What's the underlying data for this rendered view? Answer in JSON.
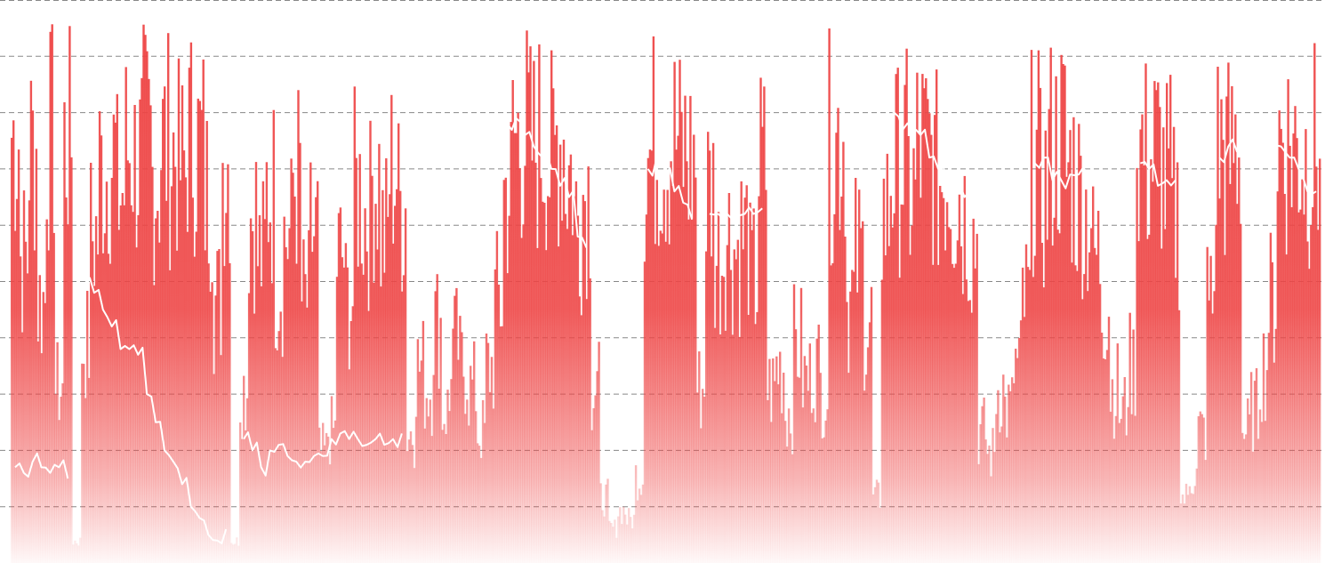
{
  "chart_data": {
    "type": "bar",
    "title": "",
    "xlabel": "",
    "ylabel": "",
    "ylim": [
      0,
      100
    ],
    "grid": true,
    "grid_step": 10,
    "grid_style": "dashed",
    "legend": "none",
    "colors": {
      "bars": "#ee4444",
      "line": "#ffffff",
      "grid": "#888888"
    },
    "series": [
      {
        "type": "bar",
        "values": [
          98,
          70,
          95,
          60,
          97,
          40,
          96,
          5,
          50,
          75,
          90,
          93,
          85,
          95,
          92,
          97,
          88,
          96,
          94,
          90,
          97,
          95,
          85,
          60,
          92,
          5,
          40,
          80,
          70,
          85,
          65,
          75,
          88,
          60,
          75,
          25,
          30,
          70,
          60,
          85,
          80,
          88,
          75,
          90,
          82,
          30,
          45,
          40,
          55,
          35,
          50,
          45,
          40,
          30,
          45,
          60,
          85,
          97,
          98,
          95,
          97,
          92,
          98,
          90,
          80,
          85,
          40,
          15,
          8,
          12,
          10,
          20,
          93,
          96,
          95,
          97,
          94,
          92,
          40,
          85,
          70,
          75,
          72,
          75,
          65,
          90,
          40,
          45,
          35,
          50,
          42,
          45,
          40,
          95,
          98,
          60,
          70,
          55,
          15,
          80,
          90,
          92,
          85,
          95,
          93,
          88,
          90,
          85,
          80,
          75,
          30,
          25,
          40,
          35,
          45,
          60,
          92,
          85,
          95,
          97,
          90,
          85,
          80,
          70,
          60,
          40,
          35,
          45,
          95,
          92,
          94,
          88,
          80,
          15,
          20,
          30,
          60,
          95,
          92,
          96,
          30,
          35,
          45,
          60,
          97,
          96,
          95,
          93,
          94
        ]
      },
      {
        "type": "line",
        "values": [
          17,
          16,
          18,
          17,
          16,
          17,
          15,
          null,
          50,
          48,
          45,
          42,
          38,
          38,
          37,
          30,
          25,
          20,
          18,
          14,
          10,
          8,
          5,
          4,
          6,
          null,
          22,
          20,
          17,
          20,
          21,
          19,
          18,
          18,
          19,
          19,
          22,
          23,
          22,
          22,
          21,
          22,
          21,
          22,
          23,
          null,
          null,
          null,
          null,
          null,
          null,
          null,
          null,
          null,
          null,
          null,
          78,
          79,
          76,
          74,
          72,
          70,
          67,
          65,
          58,
          56,
          null,
          null,
          null,
          null,
          null,
          null,
          70,
          72,
          69,
          66,
          64,
          61,
          null,
          62,
          62,
          62,
          62,
          62,
          62,
          63,
          null,
          null,
          null,
          null,
          null,
          null,
          null,
          85,
          80,
          null,
          null,
          null,
          null,
          82,
          80,
          77,
          77,
          76,
          72,
          70,
          67,
          66,
          65,
          65,
          null,
          null,
          null,
          null,
          null,
          null,
          71,
          72,
          68,
          68,
          69,
          69,
          69,
          69,
          69,
          null,
          null,
          null,
          71,
          70,
          67,
          68,
          68,
          null,
          null,
          null,
          null,
          72,
          74,
          73,
          null,
          null,
          null,
          75,
          74,
          72,
          70,
          66,
          66
        ]
      }
    ]
  }
}
